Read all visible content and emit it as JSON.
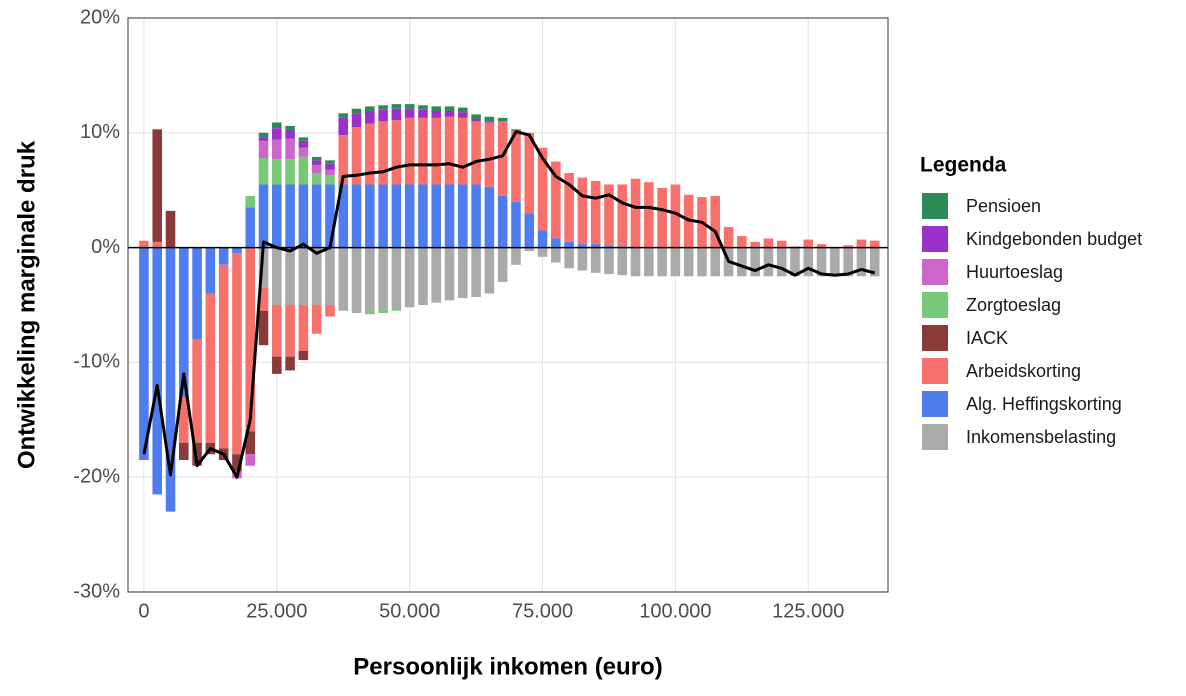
{
  "chart_data": {
    "type": "bar",
    "x_label": "Persoonlijk inkomen (euro)",
    "y_label": "Ontwikkeling marginale druk",
    "legend_title": "Legenda",
    "legend_position": "right",
    "grid": true,
    "stacked": true,
    "xlim": [
      -3000,
      140000
    ],
    "xticks": [
      0,
      {
        "value": 25000,
        "label": "25.000"
      },
      {
        "value": 50000,
        "label": "50.000"
      },
      {
        "value": 75000,
        "label": "75.000"
      },
      {
        "value": 100000,
        "label": "100.000"
      },
      {
        "value": 125000,
        "label": "125.000"
      }
    ],
    "ylim": [
      -30,
      20
    ],
    "yticks": [
      {
        "value": -30,
        "label": "-30%"
      },
      {
        "value": -20,
        "label": "-20%"
      },
      {
        "value": -10,
        "label": "-10%"
      },
      {
        "value": 0,
        "label": "0%"
      },
      {
        "value": 10,
        "label": "10%"
      },
      {
        "value": 20,
        "label": "20%"
      }
    ],
    "x": [
      0,
      2500,
      5000,
      7500,
      10000,
      12500,
      15000,
      17500,
      20000,
      22500,
      25000,
      27500,
      30000,
      32500,
      35000,
      37500,
      40000,
      42500,
      45000,
      47500,
      50000,
      52500,
      55000,
      57500,
      60000,
      62500,
      65000,
      67500,
      70000,
      72500,
      75000,
      77500,
      80000,
      82500,
      85000,
      87500,
      90000,
      92500,
      95000,
      97500,
      100000,
      102500,
      105000,
      107500,
      110000,
      112500,
      115000,
      117500,
      120000,
      122500,
      125000,
      127500,
      130000,
      132500,
      135000,
      137500
    ],
    "series": [
      {
        "name": "Pensioen",
        "color": "#2e8b57",
        "values": [
          0,
          0,
          0,
          0,
          0,
          0,
          0,
          0,
          0,
          0.4,
          0.5,
          0.4,
          0.3,
          0.3,
          0.3,
          0.4,
          0.4,
          0.4,
          0.4,
          0.4,
          0.4,
          0.4,
          0.4,
          0.4,
          0.4,
          0.4,
          0.4,
          0.3,
          0.1,
          0,
          0,
          0,
          0,
          0,
          0,
          0,
          0,
          0,
          0,
          0,
          0,
          0,
          0,
          0,
          0,
          0,
          0,
          0,
          0,
          0,
          0,
          0,
          0,
          0,
          0,
          0
        ]
      },
      {
        "name": "Kindgebonden budget",
        "color": "#9932cc",
        "values": [
          0,
          0,
          0,
          0,
          0,
          0,
          0,
          0,
          0,
          0.3,
          1,
          0.7,
          0.6,
          0.4,
          0.5,
          1.5,
          1.2,
          1.1,
          1,
          1,
          0.8,
          0.7,
          0.6,
          0.5,
          0.5,
          0.2,
          0.1,
          0,
          0,
          0,
          0,
          0,
          0,
          0,
          0,
          0,
          0,
          0,
          0,
          0,
          0,
          0,
          0,
          0,
          0,
          0,
          0,
          0,
          0,
          0,
          0,
          0,
          0,
          0,
          0,
          0
        ]
      },
      {
        "name": "Huurtoeslag",
        "color": "#cc66cc",
        "values": [
          0,
          0,
          0,
          0,
          0,
          0,
          0,
          -0.6,
          -1,
          1.5,
          1.7,
          1.8,
          0.8,
          0.7,
          0.5,
          0,
          0,
          0,
          0,
          0,
          0,
          0,
          0,
          0,
          0,
          0,
          0,
          0,
          0,
          0,
          0,
          0,
          0,
          0,
          0,
          0,
          0,
          0,
          0,
          0,
          0,
          0,
          0,
          0,
          0,
          0,
          0,
          0,
          0,
          0,
          0,
          0,
          0,
          0,
          0,
          0
        ]
      },
      {
        "name": "Zorgtoeslag",
        "color": "#77c977",
        "values": [
          0,
          0,
          0,
          0,
          0,
          0,
          0,
          0,
          1,
          2.3,
          2.2,
          2.2,
          2.4,
          1,
          0.8,
          0,
          0,
          -0.3,
          -0.3,
          -0.2,
          0,
          0,
          0,
          0,
          0,
          0,
          0,
          0,
          0,
          0,
          0,
          0,
          0,
          0,
          0,
          0,
          0,
          0,
          0,
          0,
          0,
          0,
          0,
          0,
          0,
          0,
          0,
          0,
          0,
          0,
          0,
          0,
          0,
          0,
          0,
          0
        ]
      },
      {
        "name": "IACK",
        "color": "#8b3a3a",
        "values": [
          0,
          9.8,
          3.2,
          -1.5,
          -2,
          -1,
          -1,
          -1.5,
          -2,
          -3,
          -1.5,
          -1.2,
          -0.8,
          0,
          0,
          0,
          0,
          0,
          0,
          0,
          0,
          0,
          0,
          0,
          0,
          0,
          0,
          0,
          0,
          0,
          0,
          0,
          0,
          0,
          0,
          0,
          0,
          0,
          0,
          0,
          0,
          0,
          0,
          0,
          0,
          0,
          0,
          0,
          0,
          0,
          0,
          0,
          0,
          0,
          0,
          0
        ]
      },
      {
        "name": "Arbeidskorting",
        "color": "#f8706b",
        "values": [
          0.6,
          0.5,
          0,
          -4,
          -9,
          -13,
          -16,
          -17.5,
          -16,
          -2,
          -4.5,
          -4.5,
          -4,
          -2.5,
          -1,
          4.3,
          5,
          5.3,
          5.5,
          5.6,
          5.8,
          5.8,
          5.8,
          5.9,
          5.8,
          5.5,
          5.6,
          6.5,
          6.2,
          7,
          7.2,
          6.7,
          6,
          5.8,
          5.5,
          5.3,
          5.4,
          6,
          5.7,
          5.2,
          5.5,
          4.6,
          4.4,
          4.5,
          1.8,
          1,
          0.5,
          0.8,
          0.6,
          0.1,
          0.7,
          0.3,
          0,
          0.2,
          0.7,
          0.6
        ]
      },
      {
        "name": "Alg. Heffingskorting",
        "color": "#4f7df0",
        "values": [
          -18.5,
          -21.5,
          -23,
          -13,
          -8,
          -4,
          -1.5,
          -0.5,
          3.5,
          5.5,
          5.5,
          5.5,
          5.5,
          5.5,
          5.5,
          5.5,
          5.5,
          5.5,
          5.5,
          5.5,
          5.5,
          5.5,
          5.5,
          5.5,
          5.5,
          5.5,
          5.3,
          4.5,
          4,
          3,
          1.5,
          0.8,
          0.5,
          0.3,
          0.3,
          0.2,
          0.1,
          0,
          0,
          0,
          0,
          0,
          0,
          0,
          0,
          0,
          0,
          0,
          0,
          0,
          0,
          0,
          0,
          0,
          0,
          0
        ]
      },
      {
        "name": "Inkomensbelasting",
        "color": "#aaaaaa",
        "values": [
          0,
          0,
          0,
          0,
          0,
          0,
          0,
          0,
          0,
          -3.5,
          -5,
          -5,
          -5,
          -5,
          -5,
          -5.5,
          -5.7,
          -5.5,
          -5.4,
          -5.3,
          -5.2,
          -5,
          -4.8,
          -4.6,
          -4.4,
          -4.3,
          -4,
          -3,
          -1.5,
          -0.3,
          -0.8,
          -1.3,
          -1.8,
          -2,
          -2.2,
          -2.3,
          -2.4,
          -2.5,
          -2.5,
          -2.5,
          -2.5,
          -2.5,
          -2.5,
          -2.5,
          -2.5,
          -2.5,
          -2.5,
          -2.5,
          -2.5,
          -2.5,
          -2.5,
          -2.5,
          -2.5,
          -2.5,
          -2.5,
          -2.5
        ]
      }
    ],
    "total": {
      "color": "#000000",
      "values": [
        -18,
        -12,
        -19.8,
        -11,
        -19,
        -17.5,
        -18,
        -20,
        -15,
        0.5,
        0,
        -0.3,
        0.3,
        -0.5,
        0,
        6.2,
        6.3,
        6.5,
        6.6,
        7,
        7.2,
        7.2,
        7.2,
        7.3,
        7,
        7.5,
        7.7,
        8,
        10.1,
        9.8,
        7.8,
        6.2,
        5.5,
        4.5,
        4.3,
        4.6,
        3.9,
        3.5,
        3.5,
        3.3,
        3,
        2.4,
        2.2,
        1.4,
        -1.2,
        -1.6,
        -2,
        -1.5,
        -1.8,
        -2.4,
        -1.8,
        -2.3,
        -2.4,
        -2.3,
        -1.9,
        -2.2
      ]
    }
  }
}
